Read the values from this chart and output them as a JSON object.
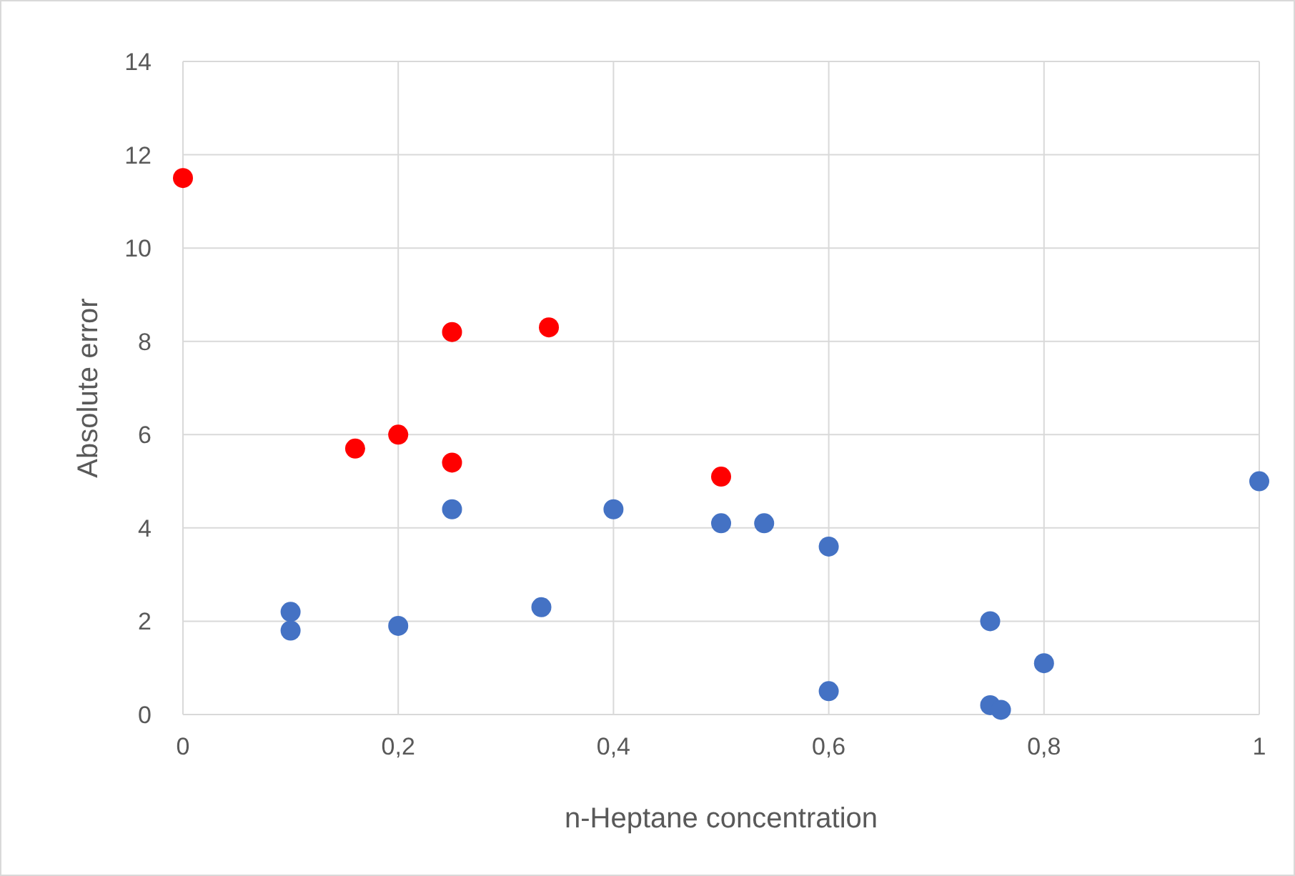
{
  "chart_data": {
    "type": "scatter",
    "xlabel": "n-Heptane concentration",
    "ylabel": "Absolute error",
    "xlim": [
      0,
      1
    ],
    "ylim": [
      0,
      14
    ],
    "xticks": [
      0,
      {
        "value": 0.2,
        "label": "0,2"
      },
      {
        "value": 0.4,
        "label": "0,4"
      },
      {
        "value": 0.6,
        "label": "0,6"
      },
      {
        "value": 0.8,
        "label": "0,8"
      },
      1
    ],
    "yticks": [
      0,
      2,
      4,
      6,
      8,
      10,
      12,
      14
    ],
    "grid": true,
    "marker": "circle",
    "series": [
      {
        "color": "#ff0000",
        "x": [
          0,
          0.16,
          0.2,
          0.25,
          0.25,
          0.34,
          0.5
        ],
        "values": [
          11.5,
          5.7,
          6.0,
          8.2,
          5.4,
          8.3,
          5.1
        ]
      },
      {
        "color": "#4472c4",
        "x": [
          0.1,
          0.1,
          0.2,
          0.25,
          0.333,
          0.4,
          0.5,
          0.54,
          0.6,
          0.6,
          0.75,
          0.75,
          0.76,
          0.8,
          1
        ],
        "values": [
          2.2,
          1.8,
          1.9,
          4.4,
          2.3,
          4.4,
          4.1,
          4.1,
          3.6,
          0.5,
          2.0,
          0.2,
          0.1,
          1.1,
          5.0
        ]
      }
    ]
  }
}
